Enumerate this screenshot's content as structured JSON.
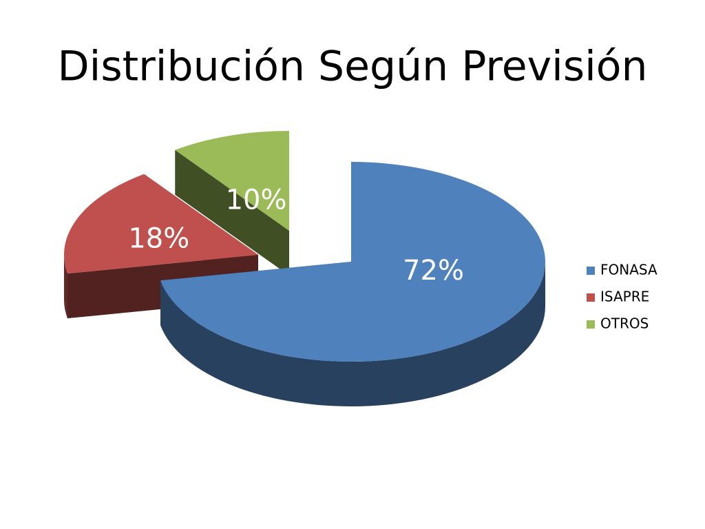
{
  "chart_data": {
    "type": "pie",
    "title": "Distribución Según Previsión",
    "categories": [
      "FONASA",
      "ISAPRE",
      "OTROS"
    ],
    "values": [
      72,
      18,
      10
    ],
    "value_labels": [
      "72%",
      "18%",
      "10%"
    ],
    "colors": [
      "#4f81bd",
      "#c0504d",
      "#9bbb59"
    ],
    "legend": "right"
  }
}
